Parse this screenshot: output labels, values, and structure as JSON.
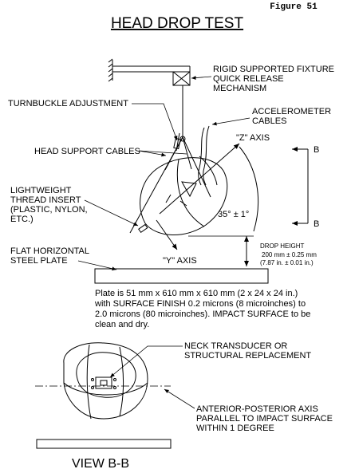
{
  "figure_number": "Figure 51",
  "title": "HEAD DROP TEST",
  "labels": {
    "fixture_1": "RIGID SUPPORTED FIXTURE",
    "fixture_2": "QUICK RELEASE",
    "fixture_3": "MECHANISM",
    "turnbuckle": "TURNBUCKLE ADJUSTMENT",
    "accel_1": "ACCELEROMETER",
    "accel_2": "CABLES",
    "head_support": "HEAD SUPPORT CABLES",
    "z_axis": "\"Z\" AXIS",
    "b_top": "B",
    "b_bottom": "B",
    "thread_1": "LIGHTWEIGHT",
    "thread_2": "THREAD INSERT",
    "thread_3": "(PLASTIC, NYLON,",
    "thread_4": "ETC.)",
    "angle": "35° ± 1°",
    "plate_1": "FLAT HORIZONTAL",
    "plate_2": "STEEL PLATE",
    "y_axis": "\"Y\" AXIS",
    "drop_1": "DROP HEIGHT",
    "drop_2": "200 mm ± 0.25 mm",
    "drop_3": "(7.87 in.  ± 0.01 in.)",
    "neck_1": "NECK TRANSDUCER OR",
    "neck_2": "STRUCTURAL REPLACEMENT",
    "ap_1": "ANTERIOR-POSTERIOR AXIS",
    "ap_2": "PARALLEL TO IMPACT SURFACE",
    "ap_3": "WITHIN 1 DEGREE",
    "view": "VIEW B-B"
  },
  "plate_note": [
    "Plate is 51 mm x 610 mm x 610 mm (2 x 24 x 24 in.)",
    "with SURFACE FINISH 0.2 microns (8 microinches) to",
    "2.0 microns (80 microinches). IMPACT SURFACE to be",
    "clean and dry."
  ]
}
